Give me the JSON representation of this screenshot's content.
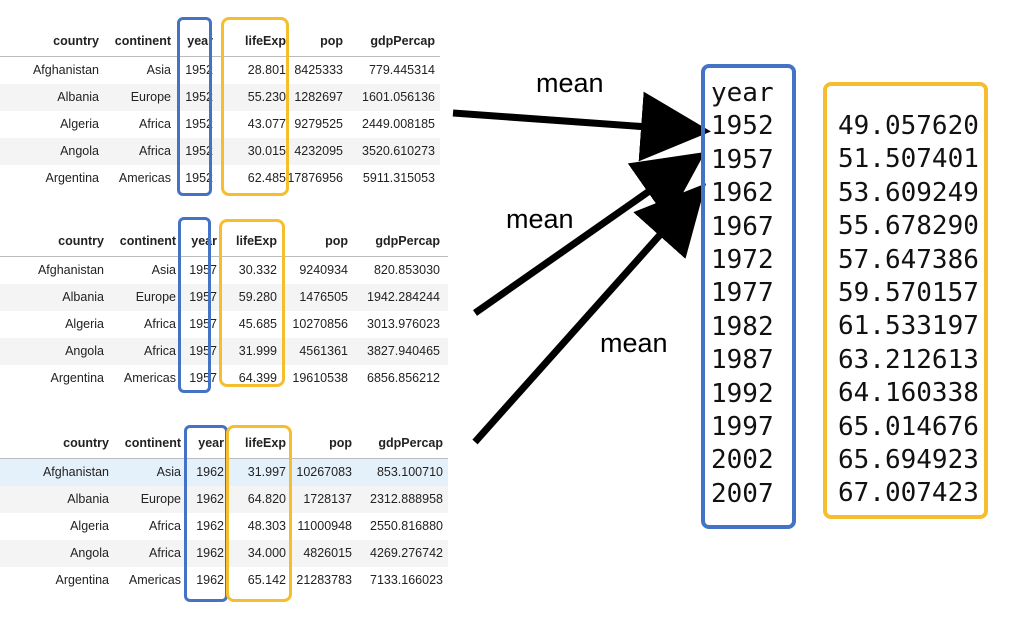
{
  "columns": [
    "country",
    "continent",
    "year",
    "lifeExp",
    "pop",
    "gdpPercap"
  ],
  "tables": [
    {
      "rows": [
        [
          "Afghanistan",
          "Asia",
          "1952",
          "28.801",
          "8425333",
          "779.445314"
        ],
        [
          "Albania",
          "Europe",
          "1952",
          "55.230",
          "1282697",
          "1601.056136"
        ],
        [
          "Algeria",
          "Africa",
          "1952",
          "43.077",
          "9279525",
          "2449.008185"
        ],
        [
          "Angola",
          "Africa",
          "1952",
          "30.015",
          "4232095",
          "3520.610273"
        ],
        [
          "Argentina",
          "Americas",
          "1952",
          "62.485",
          "17876956",
          "5911.315053"
        ]
      ]
    },
    {
      "rows": [
        [
          "Afghanistan",
          "Asia",
          "1957",
          "30.332",
          "9240934",
          "820.853030"
        ],
        [
          "Albania",
          "Europe",
          "1957",
          "59.280",
          "1476505",
          "1942.284244"
        ],
        [
          "Algeria",
          "Africa",
          "1957",
          "45.685",
          "10270856",
          "3013.976023"
        ],
        [
          "Angola",
          "Africa",
          "1957",
          "31.999",
          "4561361",
          "3827.940465"
        ],
        [
          "Argentina",
          "Americas",
          "1957",
          "64.399",
          "19610538",
          "6856.856212"
        ]
      ]
    },
    {
      "rows": [
        [
          "Afghanistan",
          "Asia",
          "1962",
          "31.997",
          "10267083",
          "853.100710"
        ],
        [
          "Albania",
          "Europe",
          "1962",
          "64.820",
          "1728137",
          "2312.888958"
        ],
        [
          "Algeria",
          "Africa",
          "1962",
          "48.303",
          "11000948",
          "2550.816880"
        ],
        [
          "Angola",
          "Africa",
          "1962",
          "34.000",
          "4826015",
          "4269.276742"
        ],
        [
          "Argentina",
          "Americas",
          "1962",
          "65.142",
          "21283783",
          "7133.166023"
        ]
      ]
    }
  ],
  "arrow_label": "mean",
  "result": {
    "header": "year",
    "years": [
      "1952",
      "1957",
      "1962",
      "1967",
      "1972",
      "1977",
      "1982",
      "1987",
      "1992",
      "1997",
      "2002",
      "2007"
    ],
    "means": [
      "49.057620",
      "51.507401",
      "53.609249",
      "55.678290",
      "57.647386",
      "59.570157",
      "61.533197",
      "63.212613",
      "64.160338",
      "65.014676",
      "65.694923",
      "67.007423"
    ]
  },
  "colors": {
    "year_box": "#4472c4",
    "lifeExp_box": "#f6be2f",
    "arrow": "#000000",
    "row_stripe": "#f4f4f4",
    "row_selected": "#e5f1fa"
  }
}
